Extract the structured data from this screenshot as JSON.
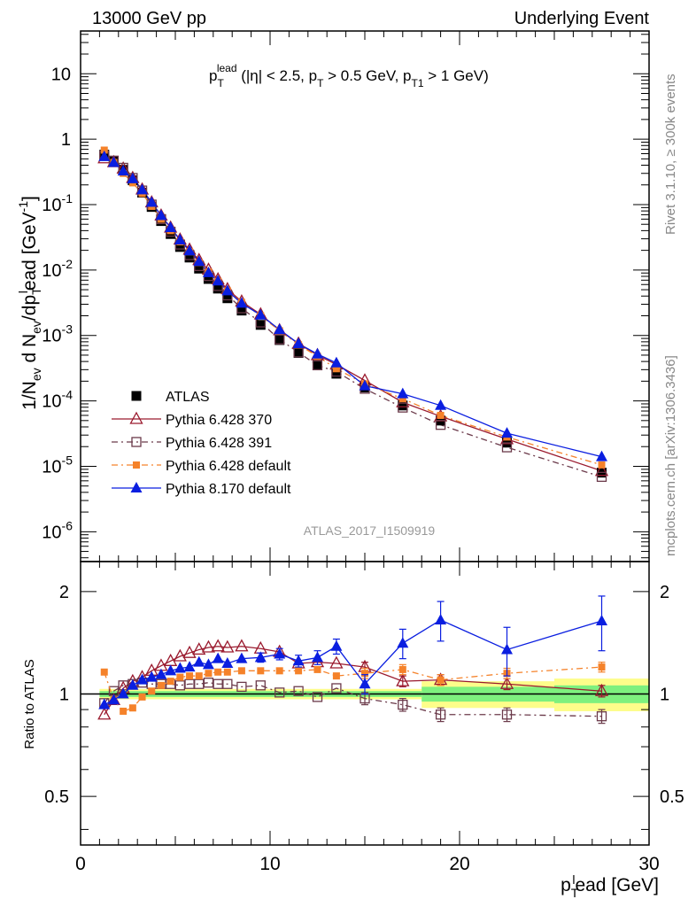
{
  "header": {
    "left": "13000 GeV pp",
    "right": "Underlying Event"
  },
  "side_labels": {
    "rivet": "Rivet 3.1.10, ≥ 300k events",
    "mcplots": "mcplots.cern.ch [arXiv:1306.3436]"
  },
  "annotation": {
    "p": "p",
    "sub_T": "T",
    "sup_lead": "lead",
    "cuts_1": " (|η| < 2.5, p",
    "cuts_2": " > 0.5 GeV, p",
    "sub_T1": "T1",
    "cuts_3": " > 1 GeV)"
  },
  "analysis_tag": "ATLAS_2017_I1509919",
  "axes": {
    "ylabel_main": "1/N_ev d N_ev/dp_T^lead [GeV^-1]",
    "ylabel_ratio": "Ratio to ATLAS",
    "xlabel": "p_T^lead [GeV]",
    "ylabel_main_parts": {
      "a": "1/N",
      "ev1": "ev",
      "b": " d N",
      "ev2": "ev",
      "c": "/dp",
      "t": "T",
      "l": "l",
      "d": "ead [GeV",
      "e": "-1",
      "f": "]"
    },
    "xlabel_parts": {
      "p": "p",
      "t": "T",
      "l": "l",
      "rest": "ead [GeV]"
    }
  },
  "colors": {
    "atlas": "#000000",
    "p370": "#9a1a2e",
    "p391": "#6b3a4a",
    "pdef": "#f5822a",
    "p8": "#0a1ee0",
    "band_green": "#7ef07e",
    "band_yellow": "#fdfd8a"
  },
  "chart_data": [
    {
      "type": "scatter",
      "title": "",
      "yscale": "log",
      "xlim": [
        0,
        30
      ],
      "ylim": [
        3.5e-07,
        45
      ],
      "yticks": [
        {
          "v": 1e-06,
          "label": "10^-6",
          "base": "10",
          "exp": "-6"
        },
        {
          "v": 1e-05,
          "label": "10^-5",
          "base": "10",
          "exp": "-5"
        },
        {
          "v": 0.0001,
          "label": "10^-4",
          "base": "10",
          "exp": "-4"
        },
        {
          "v": 0.001,
          "label": "10^-3",
          "base": "10",
          "exp": "-3"
        },
        {
          "v": 0.01,
          "label": "10^-2",
          "base": "10",
          "exp": "-2"
        },
        {
          "v": 0.1,
          "label": "10^-1",
          "base": "10",
          "exp": "-1"
        },
        {
          "v": 1,
          "label": "1",
          "base": "1",
          "exp": ""
        },
        {
          "v": 10,
          "label": "10",
          "base": "10",
          "exp": ""
        }
      ],
      "x": [
        1.25,
        1.75,
        2.25,
        2.75,
        3.25,
        3.75,
        4.25,
        4.75,
        5.25,
        5.75,
        6.25,
        6.75,
        7.25,
        7.75,
        8.5,
        9.5,
        10.5,
        11.5,
        12.5,
        13.5,
        15,
        17,
        19,
        22.5,
        27.5
      ],
      "legend_position": "lower-left",
      "series": [
        {
          "name": "ATLAS",
          "key": "atlas",
          "marker": "square-filled",
          "line": "none",
          "values": [
            0.58,
            0.46,
            0.34,
            0.235,
            0.152,
            0.092,
            0.056,
            0.0355,
            0.0225,
            0.0155,
            0.0105,
            0.0073,
            0.0052,
            0.0037,
            0.0024,
            0.00145,
            0.00085,
            0.00054,
            0.00036,
            0.00026,
            0.00016,
            8.5e-05,
            5e-05,
            2.3e-05,
            8e-06
          ]
        },
        {
          "name": "Pythia 6.428 370",
          "key": "p370",
          "marker": "triangle-open",
          "line": "solid",
          "values": [
            0.51,
            0.445,
            0.355,
            0.255,
            0.17,
            0.108,
            0.068,
            0.0445,
            0.0292,
            0.0205,
            0.0142,
            0.0101,
            0.0072,
            0.0051,
            0.0033,
            0.0021,
            0.0012,
            0.00075,
            0.0005,
            0.00036,
            0.000205,
            9.5e-05,
            5.8e-05,
            2.6e-05,
            8.5e-06
          ]
        },
        {
          "name": "Pythia 6.428 391",
          "key": "p391",
          "marker": "square-open",
          "line": "dashdot",
          "values": [
            0.56,
            0.47,
            0.365,
            0.255,
            0.164,
            0.1,
            0.06,
            0.0385,
            0.0245,
            0.0169,
            0.0115,
            0.0081,
            0.0057,
            0.0041,
            0.0026,
            0.00158,
            0.00087,
            0.00055,
            0.00035,
            0.00028,
            0.000153,
            7.9e-05,
            4.3e-05,
            1.95e-05,
            6.9e-06
          ]
        },
        {
          "name": "Pythia 6.428 default",
          "key": "pdef",
          "marker": "square-filled-small",
          "line": "dashdot",
          "values": [
            0.68,
            0.44,
            0.3,
            0.215,
            0.148,
            0.094,
            0.06,
            0.04,
            0.027,
            0.019,
            0.013,
            0.0093,
            0.0067,
            0.0048,
            0.0032,
            0.002,
            0.00118,
            0.00072,
            0.00048,
            0.00031,
            0.000182,
            0.000108,
            6e-05,
            2.8e-05,
            1.05e-05
          ]
        },
        {
          "name": "Pythia 8.170 default",
          "key": "p8",
          "marker": "triangle-filled",
          "line": "solid",
          "values": [
            0.54,
            0.44,
            0.325,
            0.248,
            0.168,
            0.108,
            0.068,
            0.0445,
            0.0287,
            0.0196,
            0.0135,
            0.0091,
            0.0068,
            0.0048,
            0.0031,
            0.00205,
            0.00123,
            0.00075,
            0.00052,
            0.00038,
            0.00017,
            0.000128,
            8.5e-05,
            3.2e-05,
            1.4e-05
          ]
        }
      ]
    },
    {
      "type": "scatter",
      "title": "",
      "yscale": "log",
      "xlim": [
        0,
        30
      ],
      "ylim": [
        0.36,
        2.45
      ],
      "xlabel": "p_T^lead [GeV]",
      "ylabel": "Ratio to ATLAS",
      "yticks": [
        {
          "v": 0.5,
          "label": "0.5"
        },
        {
          "v": 1,
          "label": "1"
        },
        {
          "v": 2,
          "label": "2"
        }
      ],
      "xticks": [
        {
          "v": 0,
          "label": "0"
        },
        {
          "v": 10,
          "label": "10"
        },
        {
          "v": 20,
          "label": "20"
        },
        {
          "v": 30,
          "label": "30"
        }
      ],
      "x": [
        1.25,
        1.75,
        2.25,
        2.75,
        3.25,
        3.75,
        4.25,
        4.75,
        5.25,
        5.75,
        6.25,
        6.75,
        7.25,
        7.75,
        8.5,
        9.5,
        10.5,
        11.5,
        12.5,
        13.5,
        15,
        17,
        19,
        22.5,
        27.5
      ],
      "bands": [
        {
          "x0": 1,
          "x1": 18,
          "green": [
            0.98,
            1.02
          ],
          "yellow": [
            0.965,
            1.035
          ]
        },
        {
          "x0": 18,
          "x1": 25,
          "green": [
            0.95,
            1.05
          ],
          "yellow": [
            0.91,
            1.09
          ]
        },
        {
          "x0": 25,
          "x1": 30,
          "green": [
            0.94,
            1.06
          ],
          "yellow": [
            0.89,
            1.11
          ]
        }
      ],
      "series": [
        {
          "name": "Pythia 6.428 370",
          "key": "p370",
          "marker": "triangle-open",
          "line": "solid",
          "values": [
            0.87,
            0.96,
            1.04,
            1.09,
            1.12,
            1.17,
            1.21,
            1.25,
            1.29,
            1.32,
            1.35,
            1.37,
            1.38,
            1.37,
            1.38,
            1.36,
            1.33,
            1.23,
            1.24,
            1.23,
            1.2,
            1.09,
            1.1,
            1.07,
            1.02
          ]
        },
        {
          "name": "Pythia 6.428 391",
          "key": "p391",
          "marker": "square-open",
          "line": "dashdot",
          "values": [
            0.94,
            1.02,
            1.06,
            1.07,
            1.08,
            1.07,
            1.07,
            1.07,
            1.06,
            1.07,
            1.07,
            1.08,
            1.07,
            1.07,
            1.05,
            1.06,
            1.01,
            1.02,
            0.98,
            1.04,
            0.97,
            0.93,
            0.87,
            0.87,
            0.86
          ]
        },
        {
          "name": "Pythia 6.428 default",
          "key": "pdef",
          "marker": "square-filled-small",
          "line": "dashdot",
          "values": [
            1.16,
            0.96,
            0.89,
            0.91,
            0.98,
            1.02,
            1.06,
            1.09,
            1.12,
            1.13,
            1.13,
            1.15,
            1.16,
            1.16,
            1.17,
            1.17,
            1.17,
            1.17,
            1.18,
            1.13,
            1.15,
            1.18,
            1.1,
            1.15,
            1.2
          ]
        },
        {
          "name": "Pythia 8.170 default",
          "key": "p8",
          "marker": "triangle-filled",
          "line": "solid",
          "values": [
            0.93,
            0.96,
            1.0,
            1.06,
            1.1,
            1.12,
            1.14,
            1.17,
            1.19,
            1.2,
            1.24,
            1.22,
            1.27,
            1.23,
            1.27,
            1.28,
            1.31,
            1.25,
            1.28,
            1.38,
            1.07,
            1.41,
            1.65,
            1.35,
            1.64
          ],
          "errors": [
            0,
            0,
            0,
            0,
            0,
            0,
            0,
            0,
            0,
            0,
            0,
            0,
            0,
            0,
            0,
            0.04,
            0.05,
            0.05,
            0.06,
            0.07,
            0.07,
            0.14,
            0.22,
            0.22,
            0.3
          ]
        }
      ]
    }
  ]
}
